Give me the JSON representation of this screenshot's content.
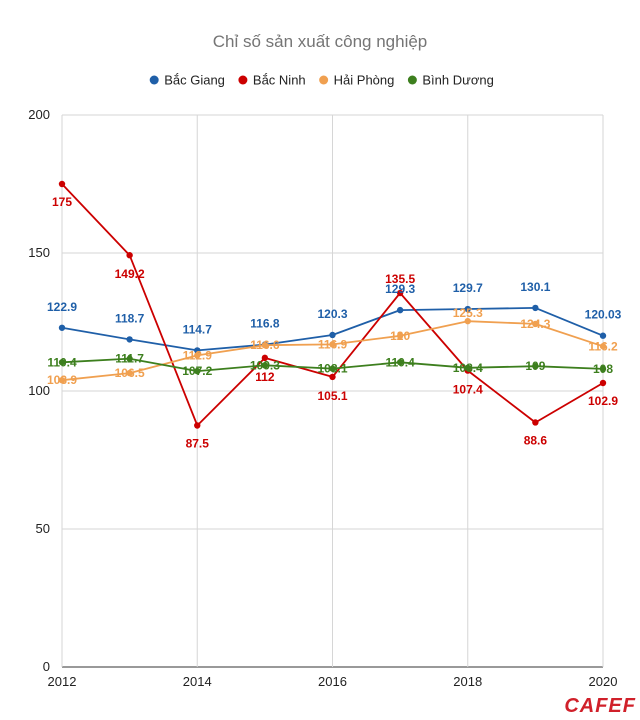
{
  "chart_data": {
    "type": "line",
    "title": "Chỉ số sản xuất công nghiệp",
    "xlabel": "",
    "ylabel": "",
    "x": [
      2012,
      2013,
      2014,
      2015,
      2016,
      2017,
      2018,
      2019,
      2020
    ],
    "x_tick_labels": [
      "2012",
      "2014",
      "2016",
      "2018",
      "2020"
    ],
    "x_tick_values": [
      2012,
      2014,
      2016,
      2018,
      2020
    ],
    "ylim": [
      0,
      200
    ],
    "y_ticks": [
      0,
      50,
      100,
      150,
      200
    ],
    "grid": true,
    "legend_position": "top",
    "series": [
      {
        "name": "Bắc Giang",
        "color": "#1f5fa8",
        "values": [
          122.9,
          118.7,
          114.7,
          116.8,
          120.3,
          129.3,
          129.7,
          130.1,
          120.03
        ],
        "labels": [
          "122.9",
          "118.7",
          "114.7",
          "116.8",
          "120.3",
          "129.3",
          "129.7",
          "130.1",
          "120.03"
        ]
      },
      {
        "name": "Bắc Ninh",
        "color": "#cc0000",
        "values": [
          175,
          149.2,
          87.5,
          112,
          105.1,
          135.5,
          107.4,
          88.6,
          102.9
        ],
        "labels": [
          "175",
          "149.2",
          "87.5",
          "112",
          "105.1",
          "135.5",
          "107.4",
          "88.6",
          "102.9"
        ]
      },
      {
        "name": "Hải Phòng",
        "color": "#f0a050",
        "values": [
          103.9,
          106.5,
          112.9,
          116.6,
          116.9,
          120,
          125.3,
          124.3,
          116.2
        ],
        "labels": [
          "103.9",
          "106.5",
          "112.9",
          "116.6",
          "116.9",
          "120",
          "125.3",
          "124.3",
          "116.2"
        ]
      },
      {
        "name": "Bình Dương",
        "color": "#3d7f1e",
        "values": [
          110.4,
          111.7,
          107.2,
          109.3,
          108.1,
          110.4,
          108.4,
          109,
          108
        ],
        "labels": [
          "110.4",
          "111.7",
          "107.2",
          "109.3",
          "108.1",
          "110.4",
          "108.4",
          "109",
          "108"
        ]
      }
    ]
  },
  "logo": "CAFEF"
}
